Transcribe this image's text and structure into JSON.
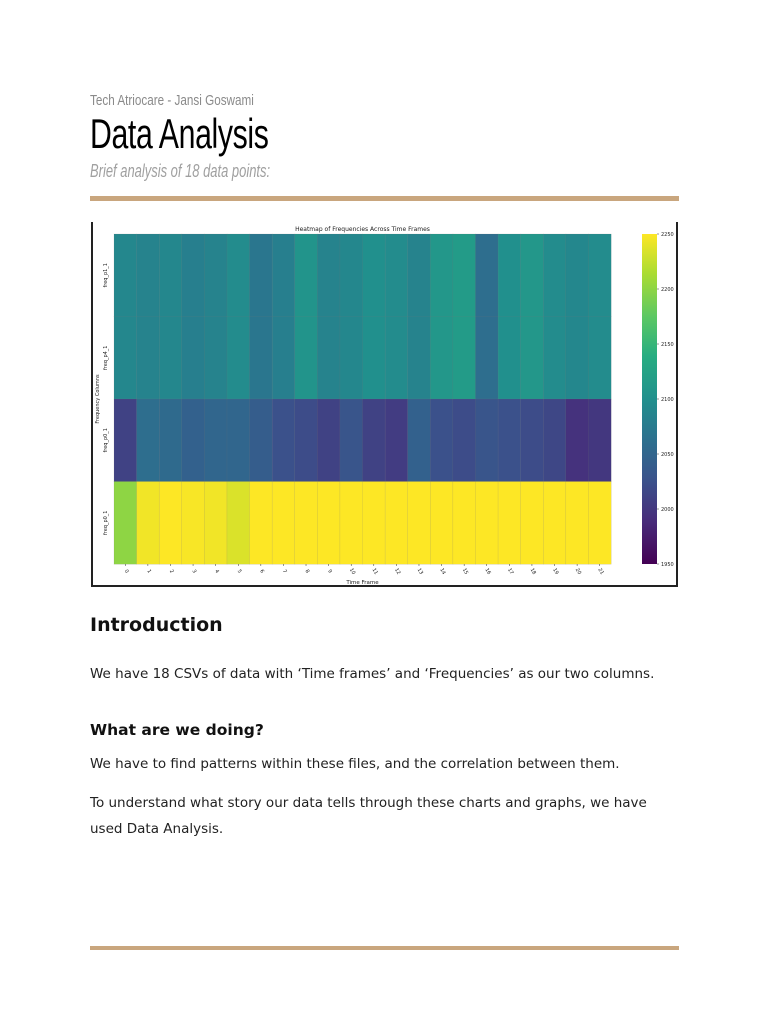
{
  "header": {
    "author_line": "Tech Atriocare - Jansi Goswami",
    "title": "Data Analysis",
    "subtitle": "Brief analysis of 18 data points:"
  },
  "colors": {
    "rule": "#c9a67e"
  },
  "chart_data": {
    "type": "heatmap",
    "title": "Heatmap of Frequencies Across Time Frames",
    "xlabel": "Time Frame",
    "ylabel": "Frequency Columns",
    "x": [
      "0",
      "1",
      "2",
      "3",
      "4",
      "5",
      "6",
      "7",
      "8",
      "9",
      "10",
      "11",
      "12",
      "13",
      "14",
      "15",
      "16",
      "17",
      "18",
      "19",
      "20",
      "21"
    ],
    "y": [
      "freq_p1_1",
      "freq_p4_1",
      "freq_p0_1",
      "freq_p0_1"
    ],
    "values": [
      [
        2090,
        2085,
        2090,
        2080,
        2085,
        2095,
        2070,
        2080,
        2105,
        2085,
        2090,
        2100,
        2095,
        2085,
        2110,
        2115,
        2060,
        2100,
        2110,
        2095,
        2090,
        2095
      ],
      [
        2090,
        2085,
        2090,
        2080,
        2085,
        2095,
        2070,
        2080,
        2105,
        2085,
        2090,
        2100,
        2095,
        2085,
        2110,
        2115,
        2060,
        2100,
        2110,
        2095,
        2090,
        2095
      ],
      [
        2010,
        2060,
        2055,
        2045,
        2050,
        2050,
        2040,
        2025,
        2020,
        2010,
        2030,
        2010,
        2005,
        2045,
        2025,
        2020,
        2030,
        2025,
        2020,
        2015,
        1995,
        2000
      ],
      [
        2200,
        2245,
        2250,
        2248,
        2245,
        2235,
        2250,
        2250,
        2250,
        2250,
        2250,
        2250,
        2250,
        2250,
        2250,
        2250,
        2250,
        2250,
        2250,
        2250,
        2250,
        2250
      ]
    ],
    "colorbar": {
      "min": 1950,
      "max": 2250,
      "ticks": [
        1950,
        2000,
        2050,
        2100,
        2150,
        2200,
        2250
      ],
      "colormap": "viridis"
    },
    "legend": "colorbar-right"
  },
  "introduction": {
    "heading": "Introduction",
    "text": "We have 18 CSVs of data with ‘Time frames’ and ‘Frequencies’ as our two columns."
  },
  "doing": {
    "heading": "What are we doing?",
    "text1": "We have to find patterns within these files, and the correlation between them.",
    "text2": "To understand what story our data tells through these charts and graphs, we have used Data Analysis."
  }
}
